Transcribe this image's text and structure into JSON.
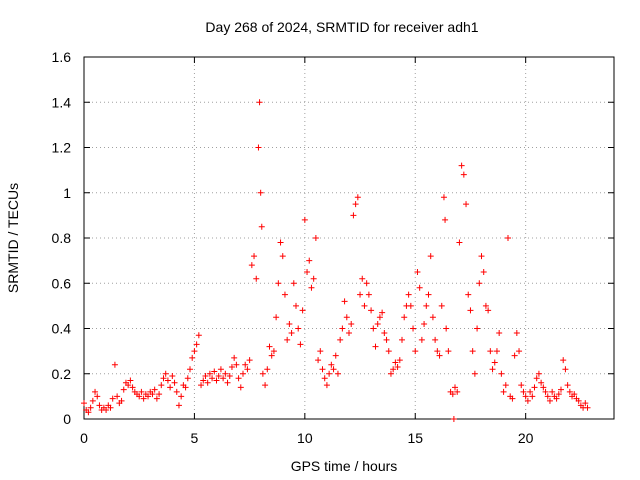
{
  "chart_data": {
    "type": "scatter",
    "title": "Day 268 of 2024, SRMTID for receiver adh1",
    "xlabel": "GPS time / hours",
    "ylabel": "SRMTID / TECUs",
    "xlim": [
      0,
      24
    ],
    "ylim": [
      0,
      1.6
    ],
    "xticks": [
      "0",
      "5",
      "10",
      "15",
      "20"
    ],
    "yticks": [
      "0",
      "0.2",
      "0.4",
      "0.6",
      "0.8",
      "1",
      "1.2",
      "1.4",
      "1.6"
    ],
    "grid": true,
    "marker": "+",
    "color": "#ff0000",
    "series": [
      {
        "name": "SRMTID",
        "points": [
          [
            0.0,
            0.07
          ],
          [
            0.1,
            0.04
          ],
          [
            0.2,
            0.03
          ],
          [
            0.3,
            0.05
          ],
          [
            0.4,
            0.08
          ],
          [
            0.5,
            0.12
          ],
          [
            0.6,
            0.1
          ],
          [
            0.7,
            0.06
          ],
          [
            0.8,
            0.04
          ],
          [
            0.9,
            0.05
          ],
          [
            1.0,
            0.04
          ],
          [
            1.1,
            0.06
          ],
          [
            1.2,
            0.05
          ],
          [
            1.3,
            0.09
          ],
          [
            1.4,
            0.24
          ],
          [
            1.5,
            0.1
          ],
          [
            1.6,
            0.07
          ],
          [
            1.7,
            0.08
          ],
          [
            1.8,
            0.13
          ],
          [
            1.9,
            0.16
          ],
          [
            2.0,
            0.15
          ],
          [
            2.1,
            0.17
          ],
          [
            2.2,
            0.14
          ],
          [
            2.3,
            0.12
          ],
          [
            2.4,
            0.11
          ],
          [
            2.5,
            0.1
          ],
          [
            2.6,
            0.12
          ],
          [
            2.7,
            0.09
          ],
          [
            2.8,
            0.11
          ],
          [
            2.9,
            0.1
          ],
          [
            3.0,
            0.12
          ],
          [
            3.1,
            0.11
          ],
          [
            3.2,
            0.13
          ],
          [
            3.3,
            0.09
          ],
          [
            3.4,
            0.11
          ],
          [
            3.5,
            0.15
          ],
          [
            3.6,
            0.18
          ],
          [
            3.7,
            0.2
          ],
          [
            3.8,
            0.17
          ],
          [
            3.9,
            0.14
          ],
          [
            4.0,
            0.19
          ],
          [
            4.1,
            0.16
          ],
          [
            4.2,
            0.12
          ],
          [
            4.3,
            0.06
          ],
          [
            4.4,
            0.1
          ],
          [
            4.5,
            0.15
          ],
          [
            4.6,
            0.14
          ],
          [
            4.7,
            0.18
          ],
          [
            4.8,
            0.22
          ],
          [
            4.9,
            0.27
          ],
          [
            5.0,
            0.3
          ],
          [
            5.1,
            0.33
          ],
          [
            5.2,
            0.37
          ],
          [
            5.3,
            0.15
          ],
          [
            5.4,
            0.17
          ],
          [
            5.5,
            0.19
          ],
          [
            5.6,
            0.16
          ],
          [
            5.7,
            0.2
          ],
          [
            5.8,
            0.18
          ],
          [
            5.9,
            0.21
          ],
          [
            6.0,
            0.17
          ],
          [
            6.1,
            0.19
          ],
          [
            6.2,
            0.22
          ],
          [
            6.3,
            0.18
          ],
          [
            6.4,
            0.2
          ],
          [
            6.5,
            0.16
          ],
          [
            6.6,
            0.19
          ],
          [
            6.7,
            0.23
          ],
          [
            6.8,
            0.27
          ],
          [
            6.9,
            0.24
          ],
          [
            7.0,
            0.18
          ],
          [
            7.1,
            0.14
          ],
          [
            7.2,
            0.2
          ],
          [
            7.3,
            0.24
          ],
          [
            7.4,
            0.22
          ],
          [
            7.5,
            0.26
          ],
          [
            7.6,
            0.68
          ],
          [
            7.7,
            0.72
          ],
          [
            7.8,
            0.62
          ],
          [
            7.9,
            1.2
          ],
          [
            7.95,
            1.4
          ],
          [
            8.0,
            1.0
          ],
          [
            8.05,
            0.85
          ],
          [
            8.1,
            0.2
          ],
          [
            8.2,
            0.15
          ],
          [
            8.3,
            0.22
          ],
          [
            8.4,
            0.32
          ],
          [
            8.5,
            0.28
          ],
          [
            8.6,
            0.3
          ],
          [
            8.7,
            0.45
          ],
          [
            8.8,
            0.6
          ],
          [
            8.9,
            0.78
          ],
          [
            9.0,
            0.72
          ],
          [
            9.1,
            0.55
          ],
          [
            9.2,
            0.35
          ],
          [
            9.3,
            0.42
          ],
          [
            9.4,
            0.38
          ],
          [
            9.5,
            0.6
          ],
          [
            9.6,
            0.5
          ],
          [
            9.7,
            0.4
          ],
          [
            9.8,
            0.33
          ],
          [
            9.9,
            0.48
          ],
          [
            10.0,
            0.88
          ],
          [
            10.1,
            0.65
          ],
          [
            10.2,
            0.7
          ],
          [
            10.3,
            0.58
          ],
          [
            10.4,
            0.62
          ],
          [
            10.5,
            0.8
          ],
          [
            10.6,
            0.26
          ],
          [
            10.7,
            0.3
          ],
          [
            10.8,
            0.22
          ],
          [
            10.9,
            0.18
          ],
          [
            11.0,
            0.15
          ],
          [
            11.1,
            0.2
          ],
          [
            11.2,
            0.24
          ],
          [
            11.3,
            0.22
          ],
          [
            11.4,
            0.28
          ],
          [
            11.5,
            0.2
          ],
          [
            11.6,
            0.35
          ],
          [
            11.7,
            0.4
          ],
          [
            11.8,
            0.52
          ],
          [
            11.9,
            0.45
          ],
          [
            12.0,
            0.38
          ],
          [
            12.1,
            0.42
          ],
          [
            12.2,
            0.9
          ],
          [
            12.3,
            0.95
          ],
          [
            12.4,
            0.98
          ],
          [
            12.5,
            0.55
          ],
          [
            12.6,
            0.62
          ],
          [
            12.7,
            0.5
          ],
          [
            12.8,
            0.6
          ],
          [
            12.9,
            0.55
          ],
          [
            13.0,
            0.48
          ],
          [
            13.1,
            0.4
          ],
          [
            13.2,
            0.32
          ],
          [
            13.3,
            0.42
          ],
          [
            13.4,
            0.45
          ],
          [
            13.5,
            0.47
          ],
          [
            13.6,
            0.38
          ],
          [
            13.7,
            0.35
          ],
          [
            13.8,
            0.3
          ],
          [
            13.9,
            0.2
          ],
          [
            14.0,
            0.22
          ],
          [
            14.1,
            0.25
          ],
          [
            14.2,
            0.23
          ],
          [
            14.3,
            0.26
          ],
          [
            14.4,
            0.35
          ],
          [
            14.5,
            0.45
          ],
          [
            14.6,
            0.5
          ],
          [
            14.7,
            0.55
          ],
          [
            14.8,
            0.5
          ],
          [
            14.9,
            0.4
          ],
          [
            15.0,
            0.3
          ],
          [
            15.1,
            0.65
          ],
          [
            15.2,
            0.58
          ],
          [
            15.3,
            0.35
          ],
          [
            15.4,
            0.42
          ],
          [
            15.5,
            0.5
          ],
          [
            15.6,
            0.55
          ],
          [
            15.7,
            0.72
          ],
          [
            15.8,
            0.45
          ],
          [
            15.9,
            0.35
          ],
          [
            16.0,
            0.3
          ],
          [
            16.1,
            0.28
          ],
          [
            16.2,
            0.5
          ],
          [
            16.3,
            0.98
          ],
          [
            16.35,
            0.88
          ],
          [
            16.4,
            0.4
          ],
          [
            16.5,
            0.3
          ],
          [
            16.6,
            0.12
          ],
          [
            16.7,
            0.11
          ],
          [
            16.75,
            0.0
          ],
          [
            16.8,
            0.14
          ],
          [
            16.9,
            0.12
          ],
          [
            17.0,
            0.78
          ],
          [
            17.1,
            1.12
          ],
          [
            17.2,
            1.08
          ],
          [
            17.3,
            0.95
          ],
          [
            17.4,
            0.55
          ],
          [
            17.5,
            0.48
          ],
          [
            17.6,
            0.3
          ],
          [
            17.7,
            0.2
          ],
          [
            17.8,
            0.4
          ],
          [
            17.9,
            0.6
          ],
          [
            18.0,
            0.72
          ],
          [
            18.1,
            0.65
          ],
          [
            18.2,
            0.5
          ],
          [
            18.3,
            0.48
          ],
          [
            18.4,
            0.3
          ],
          [
            18.5,
            0.22
          ],
          [
            18.6,
            0.25
          ],
          [
            18.7,
            0.3
          ],
          [
            18.8,
            0.38
          ],
          [
            18.9,
            0.2
          ],
          [
            19.0,
            0.12
          ],
          [
            19.1,
            0.15
          ],
          [
            19.2,
            0.8
          ],
          [
            19.3,
            0.1
          ],
          [
            19.4,
            0.09
          ],
          [
            19.5,
            0.28
          ],
          [
            19.6,
            0.38
          ],
          [
            19.7,
            0.3
          ],
          [
            19.8,
            0.15
          ],
          [
            19.9,
            0.12
          ],
          [
            20.0,
            0.1
          ],
          [
            20.1,
            0.08
          ],
          [
            20.2,
            0.12
          ],
          [
            20.3,
            0.1
          ],
          [
            20.4,
            0.14
          ],
          [
            20.5,
            0.18
          ],
          [
            20.6,
            0.2
          ],
          [
            20.7,
            0.16
          ],
          [
            20.8,
            0.14
          ],
          [
            20.9,
            0.12
          ],
          [
            21.0,
            0.1
          ],
          [
            21.1,
            0.08
          ],
          [
            21.2,
            0.12
          ],
          [
            21.3,
            0.1
          ],
          [
            21.4,
            0.09
          ],
          [
            21.5,
            0.11
          ],
          [
            21.6,
            0.13
          ],
          [
            21.7,
            0.26
          ],
          [
            21.8,
            0.22
          ],
          [
            21.9,
            0.15
          ],
          [
            22.0,
            0.12
          ],
          [
            22.1,
            0.1
          ],
          [
            22.2,
            0.11
          ],
          [
            22.3,
            0.09
          ],
          [
            22.4,
            0.08
          ],
          [
            22.5,
            0.06
          ],
          [
            22.6,
            0.05
          ],
          [
            22.7,
            0.07
          ],
          [
            22.8,
            0.05
          ]
        ]
      }
    ]
  }
}
